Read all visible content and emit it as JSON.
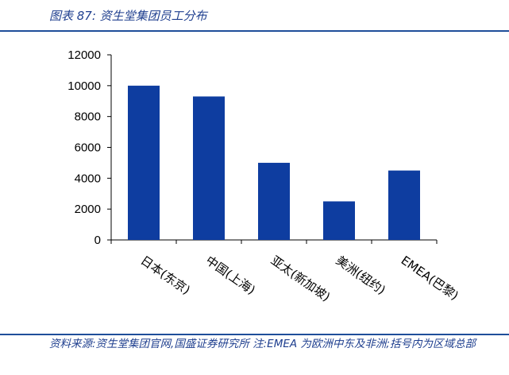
{
  "header": {
    "title": "图表 87:  资生堂集团员工分布"
  },
  "footer": {
    "source": "资料来源:资生堂集团官网,国盛证券研究所 注:EMEA 为欧洲中东及非洲;括号内为区域总部"
  },
  "chart_data": {
    "type": "bar",
    "title": "",
    "xlabel": "",
    "ylabel": "",
    "categories": [
      "日本(东京)",
      "中国(上海)",
      "亚太(新加坡)",
      "美洲(纽约)",
      "EMEA(巴黎)"
    ],
    "values": [
      10000,
      9300,
      5000,
      2500,
      4500
    ],
    "ylim": [
      0,
      12000
    ],
    "yticks": [
      0,
      2000,
      4000,
      6000,
      8000,
      10000,
      12000
    ],
    "grid": false,
    "legend": "none",
    "bar_color": "#0e3da0"
  }
}
